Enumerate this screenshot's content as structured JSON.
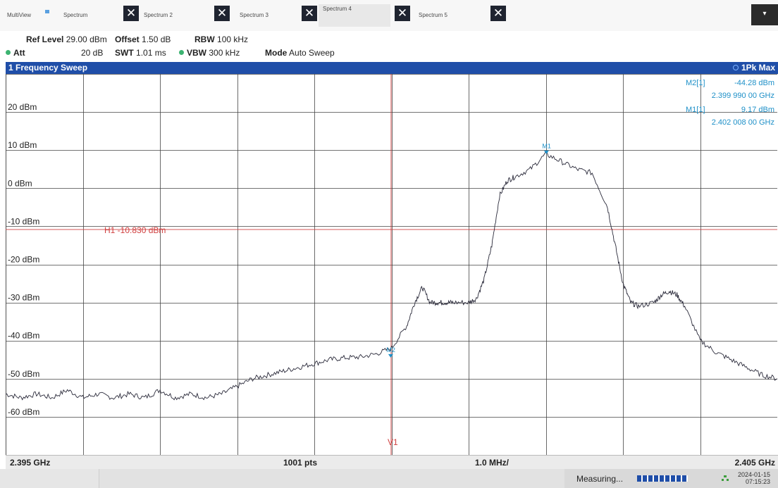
{
  "tabs": {
    "multiview": "MultiView",
    "items": [
      {
        "label": "Spectrum"
      },
      {
        "label": "Spectrum 2"
      },
      {
        "label": "Spectrum 3"
      },
      {
        "label": "Spectrum 4"
      },
      {
        "label": "Spectrum 5"
      }
    ],
    "close_glyph": "✕",
    "dropdown_glyph": "▾"
  },
  "settings": {
    "ref_level_label": "Ref Level",
    "ref_level_value": "29.00 dBm",
    "offset_label": "Offset",
    "offset_value": "1.50 dB",
    "rbw_label": "RBW",
    "rbw_value": "100 kHz",
    "att_label": "Att",
    "att_value": "20 dB",
    "swt_label": "SWT",
    "swt_value": "1.01 ms",
    "vbw_label": "VBW",
    "vbw_value": "300 kHz",
    "mode_label": "Mode",
    "mode_value": "Auto Sweep"
  },
  "window": {
    "title": "1 Frequency Sweep",
    "trace_label": "1Pk Max"
  },
  "markers_table": [
    {
      "name": "M2[1]",
      "level": "-44.28 dBm",
      "freq": "2.399 990 00 GHz"
    },
    {
      "name": "M1[1]",
      "level": "9.17 dBm",
      "freq": "2.402 008 00 GHz"
    }
  ],
  "chart_data": {
    "type": "line",
    "x_start_ghz": 2.395,
    "x_stop_ghz": 2.405,
    "y_range_dbm": [
      -70,
      30
    ],
    "y_tick_labels": [
      "20 dBm",
      "10 dBm",
      "0 dBm",
      "-10 dBm",
      "-20 dBm",
      "-30 dBm",
      "-40 dBm",
      "-50 dBm",
      "-60 dBm"
    ],
    "y_tick_values": [
      20,
      10,
      0,
      -10,
      -20,
      -30,
      -40,
      -50,
      -60
    ],
    "grid": true,
    "h_line": {
      "label": "H1 -10.830 dBm",
      "value": -10.83
    },
    "v_line": {
      "label": "V1",
      "x_ghz": 2.399995
    },
    "markers": [
      {
        "label": "M1",
        "x_ghz": 2.402008,
        "y": 9.17
      },
      {
        "label": "M2",
        "x_ghz": 2.39999,
        "y": -44.28
      }
    ],
    "series": [
      {
        "x_ghz": [
          2.395,
          2.3952,
          2.3954,
          2.3956,
          2.3958,
          2.396,
          2.3962,
          2.3964,
          2.3966,
          2.3968,
          2.397,
          2.3972,
          2.3974,
          2.3976,
          2.3978,
          2.398,
          2.3982,
          2.3984,
          2.3986,
          2.3988,
          2.399,
          2.3992,
          2.3994,
          2.3996,
          2.3998,
          2.4,
          2.4002,
          2.4003,
          2.4004,
          2.4005,
          2.4006,
          2.4007,
          2.4008,
          2.401,
          2.4011,
          2.4012,
          2.4013,
          2.4014,
          2.4015,
          2.4016,
          2.4018,
          2.402,
          2.4022,
          2.4024,
          2.4026,
          2.4028,
          2.4029,
          2.403,
          2.4031,
          2.4032,
          2.4034,
          2.4035,
          2.4036,
          2.4037,
          2.4038,
          2.404,
          2.4042,
          2.4044,
          2.4046,
          2.4048,
          2.405
        ],
        "y": [
          -54,
          -55,
          -54,
          -55,
          -53,
          -55,
          -54,
          -55,
          -54,
          -55,
          -53,
          -55,
          -54,
          -55,
          -54,
          -52,
          -50,
          -49,
          -48,
          -47,
          -46,
          -45,
          -44.5,
          -44.3,
          -43.5,
          -42,
          -36,
          -30,
          -26,
          -30,
          -30,
          -30,
          -30,
          -30,
          -29,
          -24,
          -15,
          -2,
          2,
          3,
          5,
          9,
          7,
          5,
          4,
          -5,
          -15,
          -25,
          -30,
          -31,
          -30,
          -28,
          -27,
          -28,
          -31,
          -40,
          -43,
          -45,
          -47,
          -49,
          -50
        ]
      }
    ]
  },
  "bottom_bar": {
    "start": "2.395 GHz",
    "points": "1001 pts",
    "span_div": "1.0 MHz/",
    "stop": "2.405 GHz"
  },
  "status": {
    "measuring": "Measuring...",
    "date": "2024-01-15",
    "time": "07:15:23"
  }
}
